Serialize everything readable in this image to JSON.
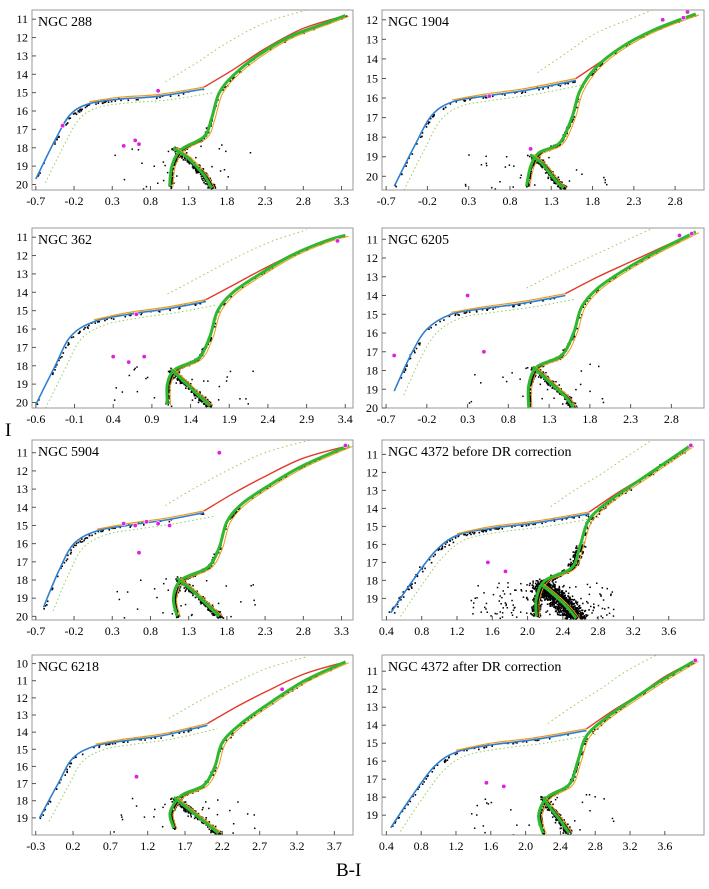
{
  "figure": {
    "ylabel": "I",
    "xlabel": "B-I",
    "colors": {
      "observed": "#000000",
      "variables": "#e020e0",
      "iso_blue": "#2f7fd0",
      "iso_red": "#e23a2a",
      "iso_green": "#2fb82f",
      "iso_orange": "#ee9a1a",
      "iso_lightgreen": "#8fcf5a"
    }
  },
  "chart_data": [
    {
      "type": "scatter",
      "title": "NGC 288",
      "xticks": [
        "-0.7",
        "-0.2",
        "0.3",
        "0.8",
        "1.3",
        "1.8",
        "2.3",
        "2.8",
        "3.3"
      ],
      "yticks": [
        "11",
        "12",
        "13",
        "14",
        "15",
        "16",
        "17",
        "18",
        "19",
        "20"
      ],
      "xlim": [
        -0.75,
        3.45
      ],
      "ylim": [
        20.3,
        10.5
      ],
      "rgb_tip": [
        3.35,
        10.8
      ],
      "hb": [
        [
          -0.7,
          19.7
        ],
        [
          -0.45,
          17.6
        ],
        [
          -0.25,
          16.2
        ],
        [
          0.0,
          15.6
        ],
        [
          0.4,
          15.35
        ],
        [
          0.9,
          15.2
        ],
        [
          1.5,
          14.8
        ]
      ],
      "agb": [
        [
          1.5,
          14.7
        ],
        [
          1.9,
          13.7
        ],
        [
          2.3,
          12.6
        ],
        [
          2.8,
          11.5
        ],
        [
          3.35,
          10.8
        ]
      ],
      "rgb": [
        [
          1.05,
          20.1
        ],
        [
          1.08,
          19.0
        ],
        [
          1.2,
          18.1
        ],
        [
          1.5,
          17.4
        ],
        [
          1.6,
          16.4
        ],
        [
          1.7,
          15.0
        ],
        [
          1.9,
          14.0
        ],
        [
          2.2,
          13.0
        ],
        [
          2.6,
          12.0
        ],
        [
          3.1,
          11.2
        ],
        [
          3.35,
          10.8
        ]
      ],
      "ms": [
        [
          1.1,
          18.0
        ],
        [
          1.3,
          18.6
        ],
        [
          1.5,
          19.5
        ],
        [
          1.6,
          20.2
        ]
      ],
      "variables": [
        [
          0.45,
          17.9
        ],
        [
          0.6,
          17.6
        ],
        [
          0.65,
          17.8
        ],
        [
          -0.35,
          16.8
        ],
        [
          0.9,
          14.9
        ]
      ]
    },
    {
      "type": "scatter",
      "title": "NGC 1904",
      "xticks": [
        "-0.7",
        "-0.2",
        "0.3",
        "0.8",
        "1.3",
        "1.8",
        "2.3",
        "2.8"
      ],
      "yticks": [
        "12",
        "13",
        "14",
        "15",
        "16",
        "17",
        "18",
        "19",
        "20"
      ],
      "xlim": [
        -0.75,
        3.15
      ],
      "ylim": [
        20.7,
        11.5
      ],
      "rgb_tip": [
        3.05,
        11.7
      ],
      "hb": [
        [
          -0.6,
          20.5
        ],
        [
          -0.35,
          18.4
        ],
        [
          -0.15,
          16.9
        ],
        [
          0.1,
          16.2
        ],
        [
          0.5,
          15.9
        ],
        [
          1.0,
          15.6
        ],
        [
          1.6,
          15.1
        ]
      ],
      "agb": [
        [
          1.6,
          15.0
        ],
        [
          1.95,
          14.0
        ],
        [
          2.3,
          13.0
        ],
        [
          2.7,
          12.3
        ],
        [
          3.05,
          11.7
        ]
      ],
      "rgb": [
        [
          1.0,
          20.5
        ],
        [
          1.05,
          19.5
        ],
        [
          1.15,
          18.8
        ],
        [
          1.4,
          18.3
        ],
        [
          1.55,
          17.0
        ],
        [
          1.65,
          15.6
        ],
        [
          1.85,
          14.4
        ],
        [
          2.15,
          13.4
        ],
        [
          2.55,
          12.5
        ],
        [
          3.05,
          11.7
        ]
      ],
      "ms": [
        [
          1.05,
          18.9
        ],
        [
          1.2,
          19.4
        ],
        [
          1.35,
          20.2
        ],
        [
          1.45,
          20.6
        ]
      ],
      "variables": [
        [
          2.65,
          12.0
        ],
        [
          2.9,
          11.9
        ],
        [
          2.95,
          11.6
        ],
        [
          1.05,
          18.6
        ],
        [
          0.55,
          15.9
        ]
      ]
    },
    {
      "type": "scatter",
      "title": "NGC 362",
      "xticks": [
        "-0.6",
        "-0.1",
        "0.4",
        "0.9",
        "1.4",
        "1.9",
        "2.4",
        "2.9",
        "3.4"
      ],
      "yticks": [
        "11",
        "12",
        "13",
        "14",
        "15",
        "16",
        "17",
        "18",
        "19",
        "20"
      ],
      "xlim": [
        -0.65,
        3.5
      ],
      "ylim": [
        20.3,
        10.5
      ],
      "rgb_tip": [
        3.4,
        10.9
      ],
      "hb": [
        [
          -0.6,
          20.1
        ],
        [
          -0.35,
          18.0
        ],
        [
          -0.15,
          16.4
        ],
        [
          0.15,
          15.6
        ],
        [
          0.6,
          15.2
        ],
        [
          1.1,
          14.9
        ],
        [
          1.6,
          14.5
        ]
      ],
      "agb": [
        [
          1.6,
          14.4
        ],
        [
          2.0,
          13.5
        ],
        [
          2.4,
          12.6
        ],
        [
          2.9,
          11.6
        ],
        [
          3.4,
          10.9
        ]
      ],
      "rgb": [
        [
          1.1,
          20.1
        ],
        [
          1.1,
          19.0
        ],
        [
          1.2,
          18.2
        ],
        [
          1.5,
          17.6
        ],
        [
          1.65,
          16.4
        ],
        [
          1.75,
          15.0
        ],
        [
          1.95,
          14.0
        ],
        [
          2.3,
          13.0
        ],
        [
          2.7,
          12.0
        ],
        [
          3.15,
          11.2
        ],
        [
          3.4,
          10.9
        ]
      ],
      "ms": [
        [
          1.15,
          18.2
        ],
        [
          1.3,
          18.8
        ],
        [
          1.5,
          19.6
        ],
        [
          1.65,
          20.2
        ]
      ],
      "variables": [
        [
          0.4,
          17.5
        ],
        [
          0.6,
          17.8
        ],
        [
          0.8,
          17.5
        ],
        [
          0.7,
          15.2
        ],
        [
          3.3,
          11.2
        ]
      ]
    },
    {
      "type": "scatter",
      "title": "NGC 6205",
      "xticks": [
        "-0.7",
        "-0.2",
        "0.3",
        "0.8",
        "1.3",
        "1.8",
        "2.3",
        "2.8"
      ],
      "yticks": [
        "11",
        "12",
        "13",
        "14",
        "15",
        "16",
        "17",
        "18",
        "19",
        "20"
      ],
      "xlim": [
        -0.75,
        3.2
      ],
      "ylim": [
        20.0,
        10.4
      ],
      "rgb_tip": [
        3.1,
        10.6
      ],
      "hb": [
        [
          -0.6,
          19.1
        ],
        [
          -0.4,
          17.2
        ],
        [
          -0.2,
          15.8
        ],
        [
          0.1,
          15.0
        ],
        [
          0.5,
          14.7
        ],
        [
          1.0,
          14.4
        ],
        [
          1.5,
          14.0
        ]
      ],
      "agb": [
        [
          1.5,
          13.9
        ],
        [
          1.9,
          13.0
        ],
        [
          2.3,
          12.2
        ],
        [
          2.7,
          11.4
        ],
        [
          3.1,
          10.6
        ]
      ],
      "rgb": [
        [
          1.05,
          20.0
        ],
        [
          1.05,
          18.8
        ],
        [
          1.15,
          17.8
        ],
        [
          1.45,
          17.2
        ],
        [
          1.6,
          16.0
        ],
        [
          1.7,
          14.6
        ],
        [
          1.9,
          13.6
        ],
        [
          2.2,
          12.7
        ],
        [
          2.6,
          11.7
        ],
        [
          3.1,
          10.6
        ]
      ],
      "ms": [
        [
          1.1,
          17.8
        ],
        [
          1.3,
          18.6
        ],
        [
          1.5,
          19.4
        ],
        [
          1.6,
          20.0
        ]
      ],
      "variables": [
        [
          -0.6,
          17.2
        ],
        [
          0.3,
          14.0
        ],
        [
          0.5,
          17.0
        ],
        [
          2.9,
          10.8
        ],
        [
          3.05,
          10.7
        ]
      ]
    },
    {
      "type": "scatter",
      "title": "NGC 5904",
      "xticks": [
        "-0.7",
        "-0.2",
        "0.3",
        "0.8",
        "1.3",
        "1.8",
        "2.3",
        "2.8",
        "3.3"
      ],
      "yticks": [
        "11",
        "12",
        "13",
        "14",
        "15",
        "16",
        "17",
        "18",
        "19",
        "20"
      ],
      "xlim": [
        -0.75,
        3.45
      ],
      "ylim": [
        20.2,
        10.3
      ],
      "rgb_tip": [
        3.4,
        10.6
      ],
      "hb": [
        [
          -0.6,
          19.5
        ],
        [
          -0.4,
          17.5
        ],
        [
          -0.2,
          16.0
        ],
        [
          0.1,
          15.3
        ],
        [
          0.5,
          15.0
        ],
        [
          1.0,
          14.7
        ],
        [
          1.5,
          14.3
        ]
      ],
      "agb": [
        [
          1.5,
          14.2
        ],
        [
          1.9,
          13.2
        ],
        [
          2.3,
          12.3
        ],
        [
          2.8,
          11.3
        ],
        [
          3.4,
          10.6
        ]
      ],
      "rgb": [
        [
          1.15,
          20.0
        ],
        [
          1.1,
          19.0
        ],
        [
          1.2,
          18.0
        ],
        [
          1.55,
          17.3
        ],
        [
          1.7,
          16.2
        ],
        [
          1.8,
          14.8
        ],
        [
          2.0,
          13.8
        ],
        [
          2.35,
          12.8
        ],
        [
          2.8,
          11.7
        ],
        [
          3.4,
          10.6
        ]
      ],
      "ms": [
        [
          1.15,
          17.9
        ],
        [
          1.35,
          18.6
        ],
        [
          1.55,
          19.4
        ],
        [
          1.7,
          20.0
        ]
      ],
      "variables": [
        [
          0.45,
          14.9
        ],
        [
          0.6,
          15.0
        ],
        [
          0.75,
          14.8
        ],
        [
          0.9,
          14.9
        ],
        [
          1.05,
          15.0
        ],
        [
          0.65,
          16.5
        ],
        [
          1.7,
          11.0
        ],
        [
          3.35,
          10.6
        ]
      ]
    },
    {
      "type": "scatter",
      "title": "NGC 4372 before DR correction",
      "xticks": [
        "0.4",
        "0.8",
        "1.2",
        "1.6",
        "2.0",
        "2.4",
        "2.8",
        "3.2",
        "3.6"
      ],
      "yticks": [
        "11",
        "12",
        "13",
        "14",
        "15",
        "16",
        "17",
        "18",
        "19"
      ],
      "xlim": [
        0.35,
        4.0
      ],
      "ylim": [
        20.2,
        10.2
      ],
      "rgb_tip": [
        3.85,
        10.5
      ],
      "hb": [
        [
          0.45,
          19.8
        ],
        [
          0.7,
          18.0
        ],
        [
          0.95,
          16.4
        ],
        [
          1.2,
          15.5
        ],
        [
          1.6,
          15.1
        ],
        [
          2.1,
          14.8
        ],
        [
          2.7,
          14.3
        ]
      ],
      "agb": [
        [
          2.7,
          14.2
        ],
        [
          3.0,
          13.2
        ],
        [
          3.3,
          12.3
        ],
        [
          3.6,
          11.3
        ],
        [
          3.85,
          10.5
        ]
      ],
      "rgb": [
        [
          2.1,
          20.0
        ],
        [
          2.1,
          19.0
        ],
        [
          2.2,
          18.0
        ],
        [
          2.5,
          17.3
        ],
        [
          2.6,
          16.0
        ],
        [
          2.7,
          14.6
        ],
        [
          2.95,
          13.5
        ],
        [
          3.25,
          12.5
        ],
        [
          3.55,
          11.5
        ],
        [
          3.85,
          10.5
        ]
      ],
      "ms": [
        [
          2.15,
          18.2
        ],
        [
          2.3,
          18.8
        ],
        [
          2.45,
          19.5
        ],
        [
          2.55,
          20.1
        ]
      ],
      "variables": [
        [
          1.55,
          17.0
        ],
        [
          1.75,
          17.5
        ],
        [
          3.85,
          10.5
        ]
      ],
      "scattered": true
    },
    {
      "type": "scatter",
      "title": "NGC 6218",
      "xticks": [
        "-0.3",
        "0.2",
        "0.7",
        "1.2",
        "1.7",
        "2.2",
        "2.7",
        "3.2",
        "3.7"
      ],
      "yticks": [
        "10",
        "11",
        "12",
        "13",
        "14",
        "15",
        "16",
        "17",
        "18",
        "19"
      ],
      "xlim": [
        -0.35,
        3.95
      ],
      "ylim": [
        20.0,
        9.5
      ],
      "rgb_tip": [
        3.85,
        9.9
      ],
      "hb": [
        [
          -0.25,
          19.0
        ],
        [
          0.0,
          17.0
        ],
        [
          0.2,
          15.5
        ],
        [
          0.5,
          14.8
        ],
        [
          0.9,
          14.5
        ],
        [
          1.4,
          14.2
        ],
        [
          2.0,
          13.6
        ]
      ],
      "agb": [
        [
          2.0,
          13.5
        ],
        [
          2.4,
          12.5
        ],
        [
          2.8,
          11.6
        ],
        [
          3.3,
          10.6
        ],
        [
          3.85,
          9.9
        ]
      ],
      "rgb": [
        [
          1.55,
          19.6
        ],
        [
          1.5,
          18.7
        ],
        [
          1.65,
          17.7
        ],
        [
          1.95,
          17.1
        ],
        [
          2.1,
          16.0
        ],
        [
          2.2,
          14.6
        ],
        [
          2.45,
          13.5
        ],
        [
          2.8,
          12.4
        ],
        [
          3.3,
          11.0
        ],
        [
          3.85,
          9.9
        ]
      ],
      "ms": [
        [
          1.55,
          17.8
        ],
        [
          1.75,
          18.5
        ],
        [
          1.95,
          19.2
        ],
        [
          2.15,
          19.9
        ]
      ],
      "variables": [
        [
          1.05,
          16.6
        ],
        [
          3.0,
          11.5
        ]
      ]
    },
    {
      "type": "scatter",
      "title": "NGC 4372 after DR correction",
      "xticks": [
        "0.4",
        "0.8",
        "1.2",
        "1.6",
        "2.0",
        "2.4",
        "2.8",
        "3.2",
        "3.6"
      ],
      "yticks": [
        "11",
        "12",
        "13",
        "14",
        "15",
        "16",
        "17",
        "18",
        "19"
      ],
      "xlim": [
        0.35,
        4.05
      ],
      "ylim": [
        20.1,
        10.1
      ],
      "rgb_tip": [
        3.95,
        10.4
      ],
      "hb": [
        [
          0.45,
          19.7
        ],
        [
          0.7,
          17.9
        ],
        [
          0.95,
          16.3
        ],
        [
          1.2,
          15.5
        ],
        [
          1.6,
          15.1
        ],
        [
          2.1,
          14.8
        ],
        [
          2.7,
          14.3
        ]
      ],
      "agb": [
        [
          2.7,
          14.2
        ],
        [
          3.0,
          13.2
        ],
        [
          3.3,
          12.3
        ],
        [
          3.6,
          11.3
        ],
        [
          3.95,
          10.4
        ]
      ],
      "rgb": [
        [
          2.2,
          20.0
        ],
        [
          2.15,
          19.0
        ],
        [
          2.25,
          18.0
        ],
        [
          2.5,
          17.3
        ],
        [
          2.6,
          16.0
        ],
        [
          2.7,
          14.6
        ],
        [
          2.95,
          13.5
        ],
        [
          3.25,
          12.5
        ],
        [
          3.6,
          11.4
        ],
        [
          3.95,
          10.4
        ]
      ],
      "ms": [
        [
          2.2,
          18.0
        ],
        [
          2.3,
          18.7
        ],
        [
          2.4,
          19.3
        ],
        [
          2.5,
          20.0
        ]
      ],
      "variables": [
        [
          1.55,
          17.2
        ],
        [
          1.75,
          17.4
        ],
        [
          3.95,
          10.4
        ]
      ]
    }
  ]
}
